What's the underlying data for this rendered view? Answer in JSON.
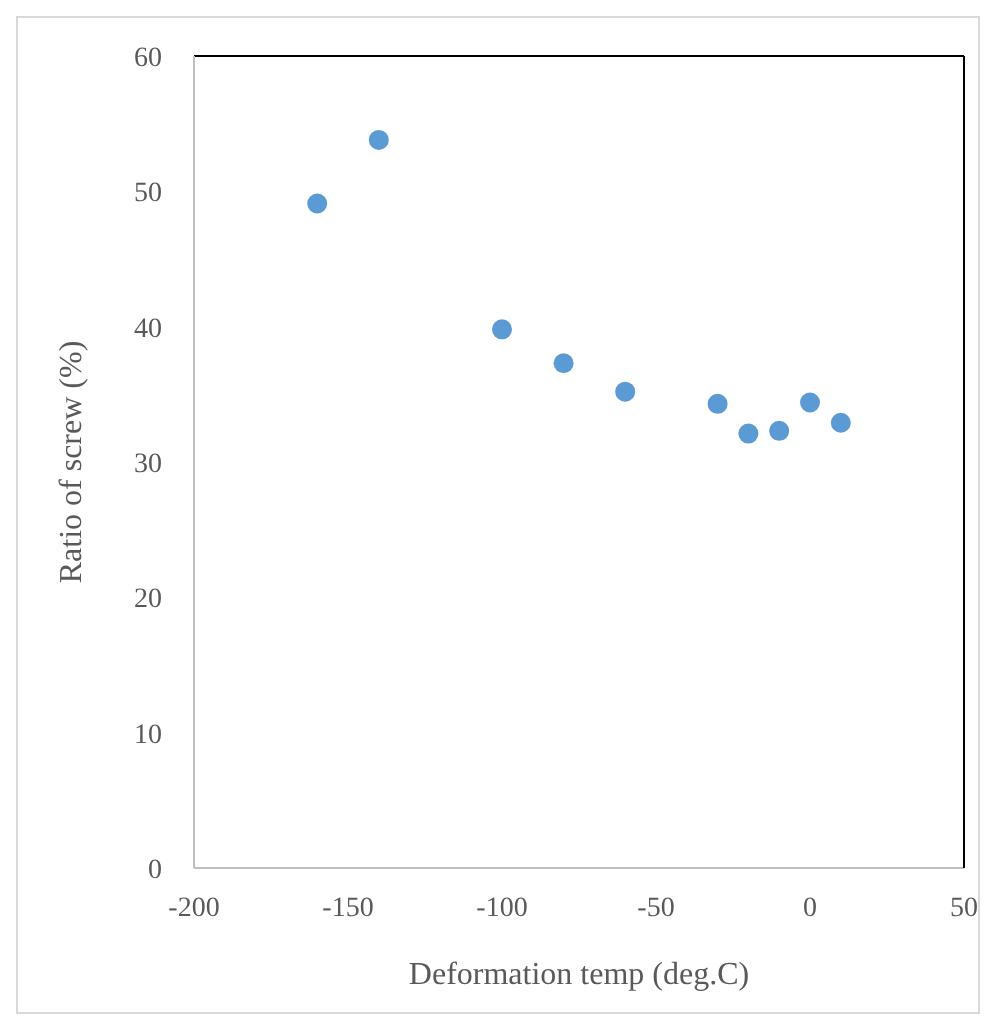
{
  "chart_data": {
    "type": "scatter",
    "xlabel": "Deformation temp (deg.C)",
    "ylabel": "Ratio of screw (%)",
    "x": [
      -160,
      -140,
      -100,
      -80,
      -60,
      -30,
      -20,
      -10,
      0,
      10
    ],
    "series": [
      {
        "color": "#5b9bd5",
        "values": [
          49.1,
          53.8,
          39.8,
          37.3,
          35.2,
          34.3,
          32.1,
          32.3,
          34.4,
          32.9
        ]
      }
    ],
    "xlim": [
      -200,
      50
    ],
    "xticks": [
      -200,
      -150,
      -100,
      -50,
      0,
      50
    ],
    "ylim": [
      0,
      60
    ],
    "yticks": [
      0,
      10,
      20,
      30,
      40,
      50,
      60
    ],
    "legend": false,
    "marker": "circle"
  }
}
